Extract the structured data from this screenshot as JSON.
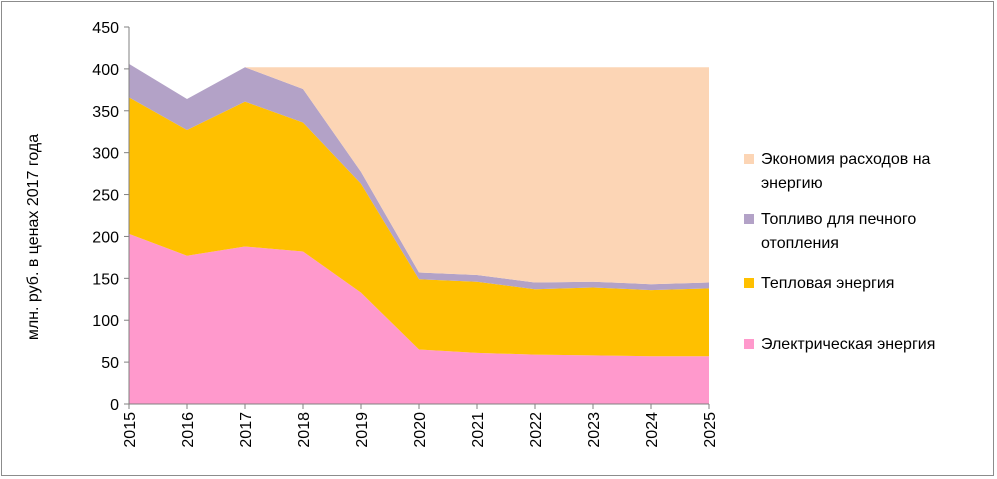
{
  "chart_data": {
    "type": "area",
    "stacked": true,
    "title": "",
    "xlabel": "",
    "ylabel": "млн. руб. в ценах 2017 года",
    "x": [
      "2015",
      "2016",
      "2017",
      "2018",
      "2019",
      "2020",
      "2021",
      "2022",
      "2023",
      "2024",
      "2025"
    ],
    "ylim": [
      0,
      450
    ],
    "yticks": [
      0,
      50,
      100,
      150,
      200,
      250,
      300,
      350,
      400,
      450
    ],
    "grid": false,
    "legend_position": "right",
    "series": [
      {
        "name": "Электрическая энергия",
        "color": "#ff99cc",
        "values": [
          203,
          177,
          188,
          182,
          133,
          65,
          61,
          59,
          58,
          57,
          57
        ]
      },
      {
        "name": "Тепловая энергия",
        "color": "#ffc000",
        "values": [
          163,
          150,
          173,
          154,
          130,
          84,
          85,
          78,
          81,
          79,
          81
        ]
      },
      {
        "name": "Топливо для печного отопления",
        "color": "#b3a2c7",
        "values": [
          40,
          37,
          41,
          40,
          14,
          8,
          8,
          8,
          7,
          7,
          7
        ]
      },
      {
        "name": "Экономия расходов на энергию",
        "color": "#fcd5b5",
        "values": [
          0,
          0,
          0,
          26,
          125,
          245,
          248,
          257,
          256,
          259,
          257
        ]
      }
    ],
    "legend_order": [
      "Экономия расходов на энергию",
      "Топливо для печного отопления",
      "Тепловая энергия",
      "Электрическая энергия"
    ]
  }
}
